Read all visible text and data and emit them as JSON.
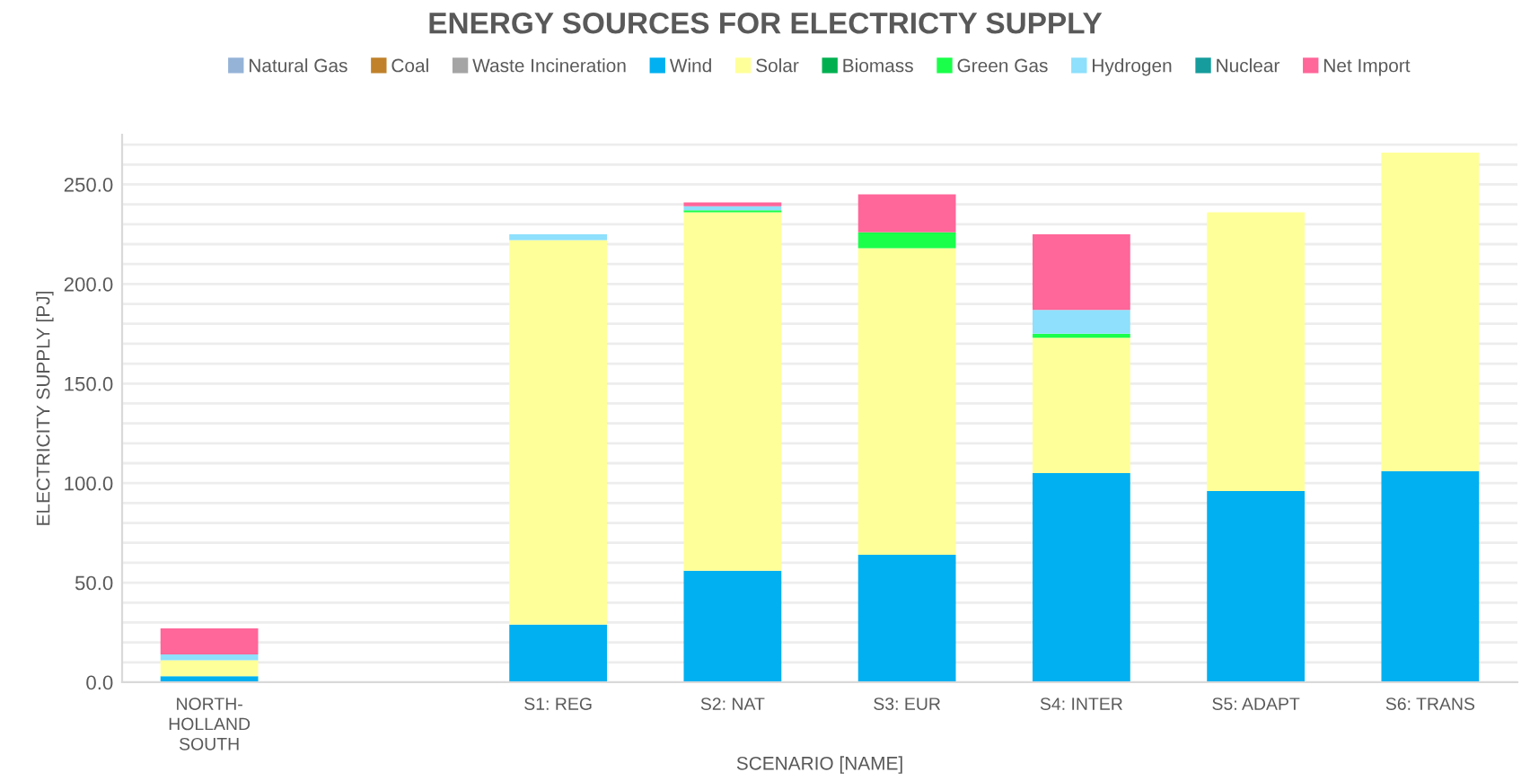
{
  "chart_data": {
    "type": "bar",
    "title": "ENERGY SOURCES FOR ELECTRICTY SUPPLY",
    "xlabel": "SCENARIO [NAME]",
    "ylabel": "ELECTRICITY SUPPLY [PJ]",
    "categories": [
      "NORTH-\nHOLLAND\nSOUTH",
      null,
      "S1: REG",
      "S2: NAT",
      "S3: EUR",
      "S4: INTER",
      "S5: ADAPT",
      "S6: TRANS"
    ],
    "stacked": true,
    "legend": "top",
    "grid": "y",
    "ylim": [
      0,
      275
    ],
    "yticks": [
      {
        "value": 0,
        "label": "0.0"
      },
      {
        "value": 10,
        "label": null
      },
      {
        "value": 20,
        "label": null
      },
      {
        "value": 30,
        "label": null
      },
      {
        "value": 40,
        "label": null
      },
      {
        "value": 50,
        "label": "50.0"
      },
      {
        "value": 60,
        "label": null
      },
      {
        "value": 70,
        "label": null
      },
      {
        "value": 80,
        "label": null
      },
      {
        "value": 90,
        "label": null
      },
      {
        "value": 100,
        "label": "100.0"
      },
      {
        "value": 110,
        "label": null
      },
      {
        "value": 120,
        "label": null
      },
      {
        "value": 130,
        "label": null
      },
      {
        "value": 140,
        "label": null
      },
      {
        "value": 150,
        "label": "150.0"
      },
      {
        "value": 160,
        "label": null
      },
      {
        "value": 170,
        "label": null
      },
      {
        "value": 180,
        "label": null
      },
      {
        "value": 190,
        "label": null
      },
      {
        "value": 200,
        "label": "200.0"
      },
      {
        "value": 210,
        "label": null
      },
      {
        "value": 220,
        "label": null
      },
      {
        "value": 230,
        "label": null
      },
      {
        "value": 240,
        "label": null
      },
      {
        "value": 250,
        "label": "250.0"
      },
      {
        "value": 260,
        "label": null
      },
      {
        "value": 270,
        "label": null
      }
    ],
    "series": [
      {
        "name": "Natural Gas",
        "color": "#95b3d7",
        "values": [
          0,
          0,
          0,
          0,
          0,
          0,
          0,
          0
        ]
      },
      {
        "name": "Coal",
        "color": "#c0812a",
        "values": [
          0,
          0,
          0,
          0,
          0,
          0,
          0,
          0
        ]
      },
      {
        "name": "Waste Incineration",
        "color": "#a5a5a5",
        "values": [
          0,
          0,
          0,
          0,
          0,
          0,
          0,
          0
        ]
      },
      {
        "name": "Wind",
        "color": "#00b0f0",
        "values": [
          3,
          0,
          29,
          56,
          64,
          105,
          96,
          106
        ]
      },
      {
        "name": "Solar",
        "color": "#ffff99",
        "values": [
          8,
          0,
          193,
          180,
          154,
          68,
          140,
          160
        ]
      },
      {
        "name": "Biomass",
        "color": "#00b050",
        "values": [
          0,
          0,
          0,
          0,
          0,
          0,
          0,
          0
        ]
      },
      {
        "name": "Green Gas",
        "color": "#1aff4a",
        "values": [
          0,
          0,
          0,
          1,
          8,
          2,
          0,
          0
        ]
      },
      {
        "name": "Hydrogen",
        "color": "#8ee0fc",
        "values": [
          3,
          0,
          3,
          2,
          0,
          12,
          0,
          0
        ]
      },
      {
        "name": "Nuclear",
        "color": "#169c9c",
        "values": [
          0,
          0,
          0,
          0,
          0,
          0,
          0,
          0
        ]
      },
      {
        "name": "Net Import",
        "color": "#ff6699",
        "values": [
          13,
          0,
          0,
          2,
          19,
          38,
          0,
          0
        ]
      }
    ]
  }
}
